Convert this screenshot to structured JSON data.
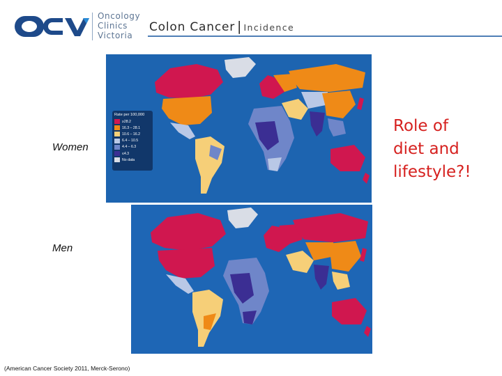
{
  "header": {
    "logo_letters": "OCV",
    "logo_lines": [
      "Oncology",
      "Clinics",
      "Victoria"
    ],
    "title_main": "Colon Cancer",
    "title_separator": "|",
    "title_sub": "Incidence",
    "colors": {
      "logo_blue": "#1e4a8a",
      "logo_accent": "#2a8bd6",
      "rule": "#4f7fb6"
    }
  },
  "maps": {
    "women_label": "Women",
    "men_label": "Men",
    "legend": {
      "title": "Rate per 100,000",
      "entries": [
        {
          "label": "≥28.2",
          "color": "#d0174f"
        },
        {
          "label": "16.3 – 28.1",
          "color": "#ef8a17"
        },
        {
          "label": "10.6 – 16.2",
          "color": "#f6cf78"
        },
        {
          "label": "6.4 – 10.5",
          "color": "#b9c8e6"
        },
        {
          "label": "4.4 – 6.3",
          "color": "#6f86c9"
        },
        {
          "label": "≤4.3",
          "color": "#3b2e93"
        },
        {
          "label": "No data",
          "color": "#d9dde6"
        }
      ]
    }
  },
  "annotation": {
    "lines": [
      "Role of",
      "diet and",
      "lifestyle?!"
    ],
    "color": "#d6211f"
  },
  "citation": "(American Cancer Society 2011, Merck-Serono)"
}
